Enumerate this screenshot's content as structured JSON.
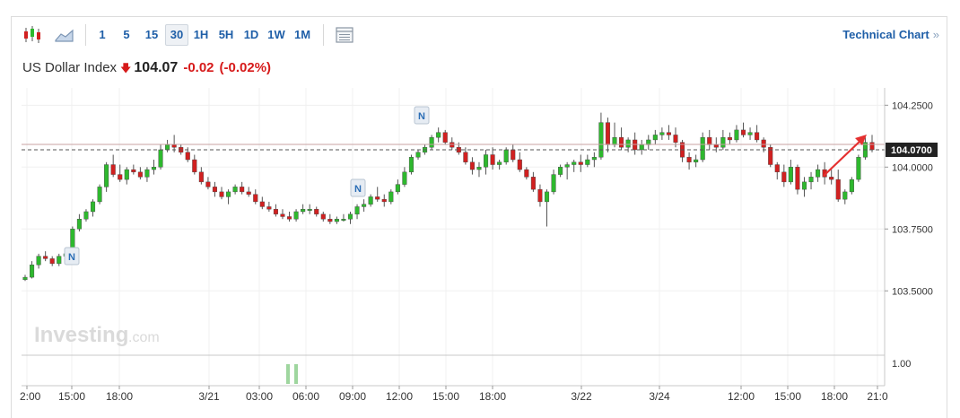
{
  "toolbar": {
    "intervals": [
      "1",
      "5",
      "15",
      "30",
      "1H",
      "5H",
      "1D",
      "1W",
      "1M"
    ],
    "active_interval": "30",
    "technical_chart_label": "Technical Chart",
    "technical_chart_chevron": "»"
  },
  "quote": {
    "name": "US Dollar Index",
    "price": "104.07",
    "change": "-0.02",
    "change_pct": "(-0.02%)",
    "direction": "down",
    "down_color": "#d61a1a"
  },
  "watermark": {
    "brand": "Investing",
    "suffix": ".com"
  },
  "news_marker_label": "N",
  "chart_data": {
    "type": "candlestick",
    "instrument": "US Dollar Index",
    "interval": "30",
    "ylim": [
      103.24,
      104.32
    ],
    "y_ticks": [
      "104.2500",
      "104.0000",
      "103.7500",
      "103.5000"
    ],
    "last_price_label": "104.0700",
    "volume_axis_label": "1.00",
    "x_tick_labels": [
      "2:00",
      "15:00",
      "18:00",
      "3/21",
      "03:00",
      "06:00",
      "09:00",
      "12:00",
      "15:00",
      "18:00",
      "3/22",
      "3/24",
      "12:00",
      "15:00",
      "18:00",
      "21:0"
    ],
    "up_color": "#2eb82e",
    "down_color": "#d12020",
    "candles": [
      [
        103.545,
        103.565,
        103.54,
        103.555
      ],
      [
        103.555,
        103.62,
        103.55,
        103.605
      ],
      [
        103.605,
        103.65,
        103.59,
        103.64
      ],
      [
        103.64,
        103.66,
        103.62,
        103.63
      ],
      [
        103.63,
        103.64,
        103.6,
        103.61
      ],
      [
        103.61,
        103.65,
        103.6,
        103.64
      ],
      [
        103.64,
        103.67,
        103.63,
        103.65
      ],
      [
        103.65,
        103.76,
        103.64,
        103.75
      ],
      [
        103.75,
        103.81,
        103.74,
        103.79
      ],
      [
        103.79,
        103.83,
        103.78,
        103.82
      ],
      [
        103.82,
        103.87,
        103.8,
        103.86
      ],
      [
        103.86,
        103.93,
        103.85,
        103.92
      ],
      [
        103.92,
        104.02,
        103.9,
        104.01
      ],
      [
        104.01,
        104.05,
        103.96,
        103.97
      ],
      [
        103.97,
        104.01,
        103.94,
        103.95
      ],
      [
        103.95,
        104.0,
        103.93,
        103.99
      ],
      [
        103.99,
        104.01,
        103.97,
        103.98
      ],
      [
        103.98,
        104.0,
        103.95,
        103.96
      ],
      [
        103.96,
        104.0,
        103.94,
        103.99
      ],
      [
        103.99,
        104.03,
        103.97,
        104.0
      ],
      [
        104.0,
        104.09,
        103.99,
        104.07
      ],
      [
        104.07,
        104.11,
        104.06,
        104.09
      ],
      [
        104.09,
        104.13,
        104.06,
        104.08
      ],
      [
        104.08,
        104.09,
        104.05,
        104.06
      ],
      [
        104.06,
        104.08,
        104.02,
        104.03
      ],
      [
        104.03,
        104.05,
        103.97,
        103.98
      ],
      [
        103.98,
        104.0,
        103.93,
        103.94
      ],
      [
        103.94,
        103.96,
        103.91,
        103.92
      ],
      [
        103.92,
        103.94,
        103.88,
        103.9
      ],
      [
        103.9,
        103.92,
        103.87,
        103.88
      ],
      [
        103.88,
        103.91,
        103.85,
        103.9
      ],
      [
        103.9,
        103.93,
        103.89,
        103.92
      ],
      [
        103.92,
        103.94,
        103.89,
        103.9
      ],
      [
        103.9,
        103.92,
        103.88,
        103.89
      ],
      [
        103.89,
        103.91,
        103.85,
        103.86
      ],
      [
        103.86,
        103.88,
        103.83,
        103.84
      ],
      [
        103.84,
        103.86,
        103.82,
        103.83
      ],
      [
        103.83,
        103.85,
        103.8,
        103.81
      ],
      [
        103.81,
        103.83,
        103.79,
        103.8
      ],
      [
        103.8,
        103.82,
        103.78,
        103.79
      ],
      [
        103.79,
        103.83,
        103.78,
        103.82
      ],
      [
        103.82,
        103.85,
        103.81,
        103.83
      ],
      [
        103.83,
        103.85,
        103.81,
        103.83
      ],
      [
        103.83,
        103.84,
        103.8,
        103.81
      ],
      [
        103.81,
        103.82,
        103.78,
        103.79
      ],
      [
        103.79,
        103.81,
        103.77,
        103.78
      ],
      [
        103.78,
        103.8,
        103.77,
        103.79
      ],
      [
        103.79,
        103.81,
        103.78,
        103.79
      ],
      [
        103.79,
        103.82,
        103.77,
        103.81
      ],
      [
        103.81,
        103.85,
        103.79,
        103.84
      ],
      [
        103.84,
        103.87,
        103.82,
        103.85
      ],
      [
        103.85,
        103.89,
        103.84,
        103.88
      ],
      [
        103.88,
        103.92,
        103.86,
        103.87
      ],
      [
        103.87,
        103.89,
        103.84,
        103.86
      ],
      [
        103.86,
        103.91,
        103.85,
        103.9
      ],
      [
        103.9,
        103.95,
        103.89,
        103.93
      ],
      [
        103.93,
        104.0,
        103.92,
        103.98
      ],
      [
        103.98,
        104.05,
        103.97,
        104.04
      ],
      [
        104.04,
        104.07,
        104.03,
        104.06
      ],
      [
        104.06,
        104.09,
        104.05,
        104.08
      ],
      [
        104.08,
        104.13,
        104.07,
        104.12
      ],
      [
        104.12,
        104.16,
        104.1,
        104.14
      ],
      [
        104.14,
        104.15,
        104.09,
        104.1
      ],
      [
        104.1,
        104.12,
        104.07,
        104.08
      ],
      [
        104.08,
        104.1,
        104.05,
        104.06
      ],
      [
        104.06,
        104.08,
        104.01,
        104.02
      ],
      [
        104.02,
        104.04,
        103.97,
        103.99
      ],
      [
        103.99,
        104.02,
        103.96,
        104.0
      ],
      [
        104.0,
        104.07,
        103.97,
        104.05
      ],
      [
        104.05,
        104.08,
        103.99,
        104.01
      ],
      [
        104.01,
        104.03,
        103.99,
        104.02
      ],
      [
        104.02,
        104.08,
        104.01,
        104.07
      ],
      [
        104.07,
        104.09,
        104.02,
        104.03
      ],
      [
        104.03,
        104.06,
        103.98,
        103.99
      ],
      [
        103.99,
        104.0,
        103.95,
        103.96
      ],
      [
        103.96,
        103.98,
        103.9,
        103.91
      ],
      [
        103.91,
        103.93,
        103.84,
        103.86
      ],
      [
        103.86,
        103.91,
        103.76,
        103.9
      ],
      [
        103.9,
        103.99,
        103.89,
        103.97
      ],
      [
        103.97,
        104.01,
        103.96,
        104.0
      ],
      [
        104.0,
        104.02,
        103.95,
        104.01
      ],
      [
        104.01,
        104.03,
        103.98,
        104.02
      ],
      [
        104.02,
        104.05,
        103.98,
        104.01
      ],
      [
        104.01,
        104.05,
        104.0,
        104.03
      ],
      [
        104.03,
        104.06,
        104.0,
        104.04
      ],
      [
        104.04,
        104.22,
        104.03,
        104.18
      ],
      [
        104.18,
        104.2,
        104.06,
        104.09
      ],
      [
        104.09,
        104.18,
        104.08,
        104.12
      ],
      [
        104.12,
        104.16,
        104.07,
        104.08
      ],
      [
        104.08,
        104.12,
        104.06,
        104.11
      ],
      [
        104.11,
        104.14,
        104.05,
        104.07
      ],
      [
        104.07,
        104.11,
        104.05,
        104.09
      ],
      [
        104.09,
        104.13,
        104.07,
        104.11
      ],
      [
        104.11,
        104.15,
        104.09,
        104.13
      ],
      [
        104.13,
        104.16,
        104.11,
        104.14
      ],
      [
        104.14,
        104.17,
        104.11,
        104.13
      ],
      [
        104.13,
        104.16,
        104.08,
        104.1
      ],
      [
        104.1,
        104.11,
        104.02,
        104.04
      ],
      [
        104.04,
        104.06,
        103.99,
        104.02
      ],
      [
        104.02,
        104.05,
        104.0,
        104.03
      ],
      [
        104.03,
        104.14,
        104.02,
        104.12
      ],
      [
        104.12,
        104.15,
        104.07,
        104.09
      ],
      [
        104.09,
        104.12,
        104.06,
        104.08
      ],
      [
        104.08,
        104.15,
        104.07,
        104.12
      ],
      [
        104.12,
        104.14,
        104.09,
        104.11
      ],
      [
        104.11,
        104.17,
        104.1,
        104.15
      ],
      [
        104.15,
        104.18,
        104.12,
        104.13
      ],
      [
        104.13,
        104.16,
        104.11,
        104.14
      ],
      [
        104.14,
        104.17,
        104.1,
        104.11
      ],
      [
        104.11,
        104.12,
        104.06,
        104.08
      ],
      [
        104.08,
        104.09,
        104.0,
        104.01
      ],
      [
        104.01,
        104.02,
        103.95,
        103.98
      ],
      [
        103.98,
        104.01,
        103.92,
        103.94
      ],
      [
        103.94,
        104.03,
        103.93,
        104.0
      ],
      [
        104.0,
        104.01,
        103.89,
        103.91
      ],
      [
        103.91,
        103.96,
        103.88,
        103.94
      ],
      [
        103.94,
        103.98,
        103.91,
        103.96
      ],
      [
        103.96,
        104.01,
        103.94,
        103.99
      ],
      [
        103.99,
        104.02,
        103.93,
        103.96
      ],
      [
        103.96,
        103.99,
        103.93,
        103.95
      ],
      [
        103.95,
        103.99,
        103.86,
        103.87
      ],
      [
        103.87,
        103.91,
        103.85,
        103.9
      ],
      [
        103.9,
        103.96,
        103.89,
        103.95
      ],
      [
        103.95,
        104.05,
        103.94,
        104.04
      ],
      [
        104.04,
        104.12,
        104.03,
        104.1
      ],
      [
        104.1,
        104.13,
        104.06,
        104.07
      ]
    ]
  }
}
